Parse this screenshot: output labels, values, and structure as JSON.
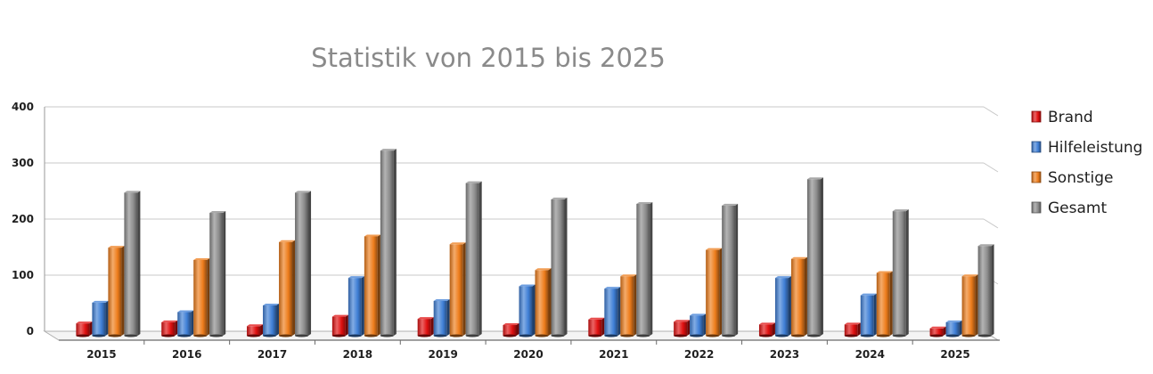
{
  "chart_data": {
    "type": "bar",
    "title": "Statistik von 2015 bis 2025",
    "xlabel": "",
    "ylabel": "",
    "categories": [
      "2015",
      "2016",
      "2017",
      "2018",
      "2019",
      "2020",
      "2021",
      "2022",
      "2023",
      "2024",
      "2025"
    ],
    "ylim": [
      0,
      400
    ],
    "yticks": [
      "0",
      "100",
      "200",
      "300",
      "400"
    ],
    "grid": true,
    "legend_position": "right",
    "series": [
      {
        "name": "Brand",
        "color": "#e01010",
        "values": [
          22,
          24,
          17,
          34,
          30,
          19,
          29,
          25,
          20,
          20,
          13
        ]
      },
      {
        "name": "Hilfeleistung",
        "color": "#3f7fd6",
        "values": [
          59,
          42,
          54,
          103,
          62,
          88,
          84,
          36,
          103,
          72,
          24
        ]
      },
      {
        "name": "Sonstige",
        "color": "#ee7d1c",
        "values": [
          157,
          135,
          167,
          177,
          163,
          117,
          106,
          153,
          137,
          112,
          106
        ]
      },
      {
        "name": "Gesamt",
        "color": "#8c8c8c",
        "values": [
          255,
          219,
          255,
          330,
          272,
          243,
          235,
          232,
          279,
          222,
          160
        ]
      }
    ]
  }
}
